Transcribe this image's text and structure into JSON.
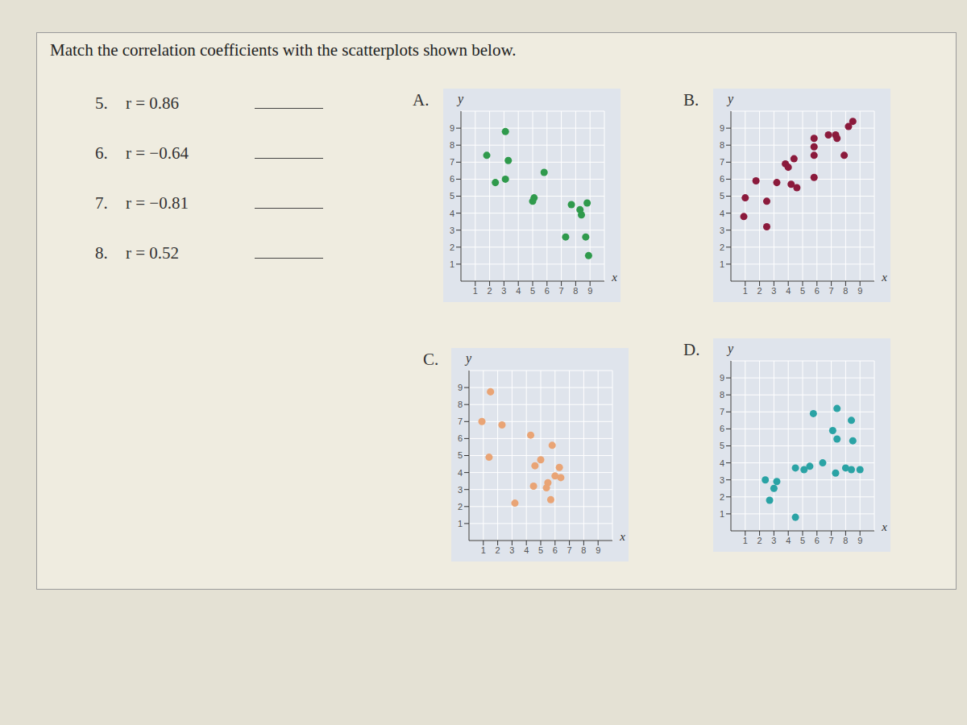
{
  "instructions": "Match the correlation coefficients with the scatterplots shown below.",
  "questions": [
    {
      "number": "5.",
      "label": "r = 0.86"
    },
    {
      "number": "6.",
      "label": "r = −0.64"
    },
    {
      "number": "7.",
      "label": "r = −0.81"
    },
    {
      "number": "8.",
      "label": "r = 0.52"
    }
  ],
  "chart_data": [
    {
      "title": "A.",
      "type": "scatter",
      "x_label": "x",
      "y_label": "y",
      "color": "#2f9a4c",
      "x": [
        3.1,
        1.8,
        3.3,
        2.4,
        3.1,
        5.8,
        5.1,
        5.0,
        7.7,
        8.8,
        8.4,
        8.3,
        7.3,
        8.7,
        8.9
      ],
      "y": [
        8.8,
        7.4,
        7.1,
        5.8,
        6.0,
        6.4,
        4.9,
        4.7,
        4.5,
        4.6,
        3.9,
        4.2,
        2.6,
        2.6,
        1.5
      ],
      "xlim": [
        0,
        10
      ],
      "ylim": [
        0,
        10
      ],
      "xticks": [
        1,
        2,
        3,
        4,
        5,
        6,
        7,
        8,
        9
      ],
      "yticks": [
        1,
        2,
        3,
        4,
        5,
        6,
        7,
        8,
        9
      ],
      "grid": true
    },
    {
      "title": "B.",
      "type": "scatter",
      "x_label": "x",
      "y_label": "y",
      "color": "#8b1a3c",
      "x": [
        1.0,
        0.9,
        1.75,
        2.5,
        2.5,
        3.2,
        3.8,
        4.0,
        4.4,
        4.2,
        4.6,
        5.8,
        5.8,
        5.8,
        5.8,
        6.8,
        7.3,
        7.4,
        7.9,
        8.5,
        8.2
      ],
      "y": [
        4.9,
        3.8,
        5.9,
        4.7,
        3.2,
        5.8,
        6.9,
        6.7,
        7.2,
        5.7,
        5.5,
        6.1,
        7.9,
        7.4,
        8.4,
        8.6,
        8.6,
        8.4,
        7.4,
        9.4,
        9.1
      ],
      "xlim": [
        0,
        10
      ],
      "ylim": [
        0,
        10
      ],
      "xticks": [
        1,
        2,
        3,
        4,
        5,
        6,
        7,
        8,
        9
      ],
      "yticks": [
        1,
        2,
        3,
        4,
        5,
        6,
        7,
        8,
        9
      ],
      "grid": true
    },
    {
      "title": "C.",
      "type": "scatter",
      "x_label": "x",
      "y_label": "y",
      "color": "#e9a475",
      "x": [
        1.5,
        0.9,
        2.3,
        4.3,
        1.4,
        5.8,
        5.0,
        4.6,
        6.3,
        6.0,
        6.4,
        5.5,
        4.5,
        5.4,
        3.2,
        5.7
      ],
      "y": [
        8.75,
        7.0,
        6.8,
        6.2,
        4.9,
        5.6,
        4.75,
        4.4,
        4.3,
        3.8,
        3.7,
        3.4,
        3.2,
        3.1,
        2.2,
        2.4
      ],
      "xlim": [
        0,
        10
      ],
      "ylim": [
        0,
        10
      ],
      "xticks": [
        1,
        2,
        3,
        4,
        5,
        6,
        7,
        8,
        9
      ],
      "yticks": [
        1,
        2,
        3,
        4,
        5,
        6,
        7,
        8,
        9
      ],
      "grid": true
    },
    {
      "title": "D.",
      "type": "scatter",
      "x_label": "x",
      "y_label": "y",
      "color": "#2aa3a5",
      "x": [
        5.75,
        7.4,
        8.4,
        7.1,
        7.4,
        8.5,
        4.5,
        5.1,
        5.5,
        6.4,
        7.3,
        8.0,
        8.4,
        9.0,
        2.4,
        3.0,
        3.2,
        2.7,
        4.5
      ],
      "y": [
        6.9,
        7.2,
        6.5,
        5.9,
        5.4,
        5.3,
        3.7,
        3.6,
        3.8,
        4.0,
        3.4,
        3.7,
        3.6,
        3.6,
        3.0,
        2.5,
        2.9,
        1.8,
        0.8
      ],
      "xlim": [
        0,
        10
      ],
      "ylim": [
        0,
        10
      ],
      "xticks": [
        1,
        2,
        3,
        4,
        5,
        6,
        7,
        8,
        9
      ],
      "yticks": [
        1,
        2,
        3,
        4,
        5,
        6,
        7,
        8,
        9
      ],
      "grid": true
    }
  ]
}
